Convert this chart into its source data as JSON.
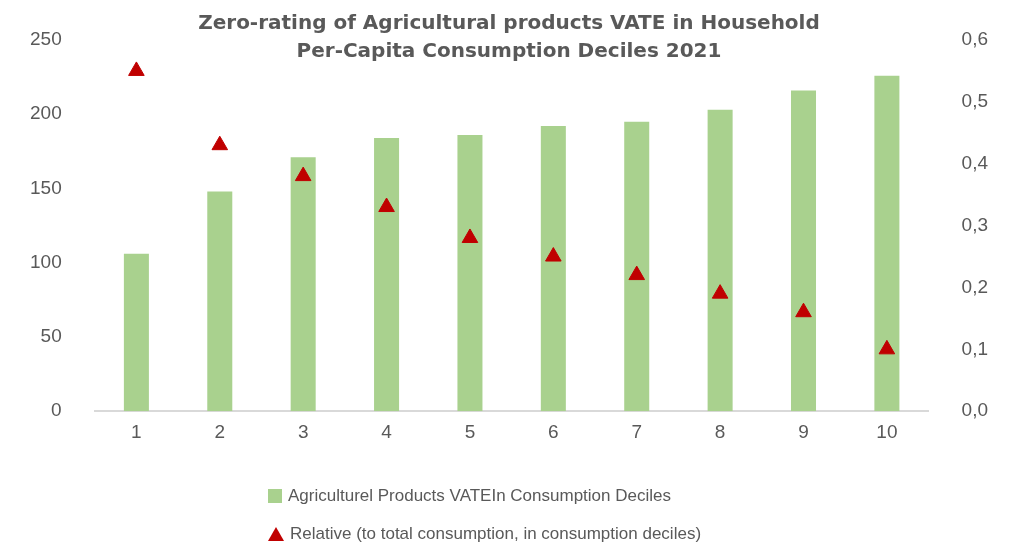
{
  "chart_data": {
    "type": "bar",
    "title": "Zero-rating of Agricultural products VATE in Household Per-Capita Consumption Deciles 2021",
    "categories": [
      "1",
      "2",
      "3",
      "4",
      "5",
      "6",
      "7",
      "8",
      "9",
      "10"
    ],
    "series": [
      {
        "name": "Agriculturel Products VATEIn Consumption Deciles",
        "color": "#a9d18e",
        "values": [
          106,
          148,
          171,
          184,
          186,
          192,
          195,
          203,
          216,
          226
        ]
      },
      {
        "name": "Relative (to total consumption, in consumption deciles)",
        "type": "scatter",
        "axis": "y2",
        "color": "#c00000",
        "values": [
          0.55,
          0.43,
          0.38,
          0.33,
          0.28,
          0.25,
          0.22,
          0.19,
          0.16,
          0.1
        ]
      }
    ],
    "ylim": [
      0,
      250
    ],
    "yticks": [
      0,
      50,
      100,
      150,
      200,
      250
    ],
    "y2lim": [
      0,
      0.6
    ],
    "y2ticks": [
      {
        "value": 0,
        "label": "0,0"
      },
      {
        "value": 0.1,
        "label": "0,1"
      },
      {
        "value": 0.2,
        "label": "0,2"
      },
      {
        "value": 0.3,
        "label": "0,3"
      },
      {
        "value": 0.4,
        "label": "0,4"
      },
      {
        "value": 0.5,
        "label": "0,5"
      },
      {
        "value": 0.6,
        "label": "0,6"
      }
    ],
    "grid": false,
    "legend": "bottom",
    "marker": "triangle"
  }
}
